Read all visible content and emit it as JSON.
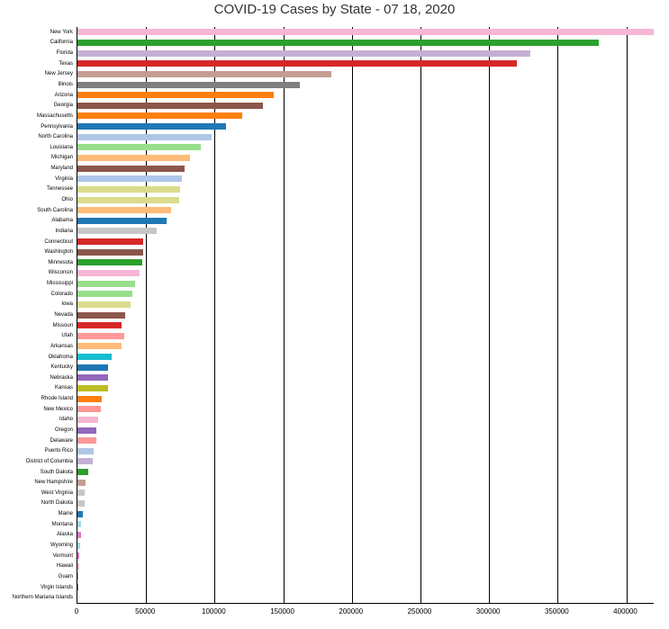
{
  "chart": {
    "type": "bar_horizontal",
    "title": "COVID-19 Cases by State - 07 18, 2020",
    "title_fontsize": 15,
    "background_color": "#ffffff",
    "grid_color": "#000000",
    "xlim": [
      0,
      420000
    ],
    "xtick_step": 50000,
    "xticks": [
      0,
      50000,
      100000,
      150000,
      200000,
      250000,
      300000,
      350000,
      400000
    ],
    "label_fontsize": 6,
    "tick_fontsize": 8,
    "bars": [
      {
        "label": "New York",
        "value": 430000,
        "color": "#f7b6d2"
      },
      {
        "label": "California",
        "value": 380000,
        "color": "#2ca02c"
      },
      {
        "label": "Florida",
        "value": 330000,
        "color": "#c5b0d5"
      },
      {
        "label": "Texas",
        "value": 320000,
        "color": "#d62728"
      },
      {
        "label": "New Jersey",
        "value": 185000,
        "color": "#c49c94"
      },
      {
        "label": "Illinois",
        "value": 162000,
        "color": "#7f7f7f"
      },
      {
        "label": "Arizona",
        "value": 143000,
        "color": "#ff7f0e"
      },
      {
        "label": "Georgia",
        "value": 135000,
        "color": "#8c564b"
      },
      {
        "label": "Massachusetts",
        "value": 120000,
        "color": "#ff7f0e"
      },
      {
        "label": "Pennsylvania",
        "value": 108000,
        "color": "#1f77b4"
      },
      {
        "label": "North Carolina",
        "value": 98000,
        "color": "#aec7e8"
      },
      {
        "label": "Louisiana",
        "value": 90000,
        "color": "#98df8a"
      },
      {
        "label": "Michigan",
        "value": 82000,
        "color": "#ffbb78"
      },
      {
        "label": "Maryland",
        "value": 78000,
        "color": "#8c564b"
      },
      {
        "label": "Virginia",
        "value": 76000,
        "color": "#aec7e8"
      },
      {
        "label": "Tennessee",
        "value": 75000,
        "color": "#dbdb8d"
      },
      {
        "label": "Ohio",
        "value": 74000,
        "color": "#dbdb8d"
      },
      {
        "label": "South Carolina",
        "value": 68000,
        "color": "#ffbb78"
      },
      {
        "label": "Alabama",
        "value": 65000,
        "color": "#1f77b4"
      },
      {
        "label": "Indiana",
        "value": 58000,
        "color": "#c7c7c7"
      },
      {
        "label": "Connecticut",
        "value": 48000,
        "color": "#d62728"
      },
      {
        "label": "Washington",
        "value": 48000,
        "color": "#8c564b"
      },
      {
        "label": "Minnesota",
        "value": 47000,
        "color": "#2ca02c"
      },
      {
        "label": "Wisconsin",
        "value": 45000,
        "color": "#f7b6d2"
      },
      {
        "label": "Mississippi",
        "value": 42000,
        "color": "#98df8a"
      },
      {
        "label": "Colorado",
        "value": 40000,
        "color": "#98df8a"
      },
      {
        "label": "Iowa",
        "value": 39000,
        "color": "#dbdb8d"
      },
      {
        "label": "Nevada",
        "value": 35000,
        "color": "#8c564b"
      },
      {
        "label": "Missouri",
        "value": 32000,
        "color": "#d62728"
      },
      {
        "label": "Utah",
        "value": 34000,
        "color": "#ff9896"
      },
      {
        "label": "Arkansas",
        "value": 32000,
        "color": "#ffbb78"
      },
      {
        "label": "Oklahoma",
        "value": 25000,
        "color": "#17becf"
      },
      {
        "label": "Kentucky",
        "value": 22000,
        "color": "#1f77b4"
      },
      {
        "label": "Nebraska",
        "value": 22000,
        "color": "#9467bd"
      },
      {
        "label": "Kansas",
        "value": 22000,
        "color": "#bcbd22"
      },
      {
        "label": "Rhode Island",
        "value": 18000,
        "color": "#ff7f0e"
      },
      {
        "label": "New Mexico",
        "value": 17000,
        "color": "#ff9896"
      },
      {
        "label": "Idaho",
        "value": 15000,
        "color": "#f7b6d2"
      },
      {
        "label": "Oregon",
        "value": 14000,
        "color": "#9467bd"
      },
      {
        "label": "Delaware",
        "value": 13500,
        "color": "#ff9896"
      },
      {
        "label": "Puerto Rico",
        "value": 12000,
        "color": "#aec7e8"
      },
      {
        "label": "District of Columbia",
        "value": 11000,
        "color": "#c5b0d5"
      },
      {
        "label": "South Dakota",
        "value": 8000,
        "color": "#2ca02c"
      },
      {
        "label": "New Hampshire",
        "value": 6200,
        "color": "#c49c94"
      },
      {
        "label": "West Virginia",
        "value": 5200,
        "color": "#c7c7c7"
      },
      {
        "label": "North Dakota",
        "value": 5000,
        "color": "#c7c7c7"
      },
      {
        "label": "Maine",
        "value": 3700,
        "color": "#1f77b4"
      },
      {
        "label": "Montana",
        "value": 2600,
        "color": "#9edae5"
      },
      {
        "label": "Alaska",
        "value": 2300,
        "color": "#e377c2"
      },
      {
        "label": "Wyoming",
        "value": 2200,
        "color": "#9edae5"
      },
      {
        "label": "Vermont",
        "value": 1400,
        "color": "#e377c2"
      },
      {
        "label": "Hawaii",
        "value": 1400,
        "color": "#f7b6d2"
      },
      {
        "label": "Guam",
        "value": 300,
        "color": "#c49c94"
      },
      {
        "label": "Virgin Islands",
        "value": 280,
        "color": "#7f7f7f"
      },
      {
        "label": "Northern Mariana Islands",
        "value": 40,
        "color": "#bcbd22"
      }
    ]
  }
}
